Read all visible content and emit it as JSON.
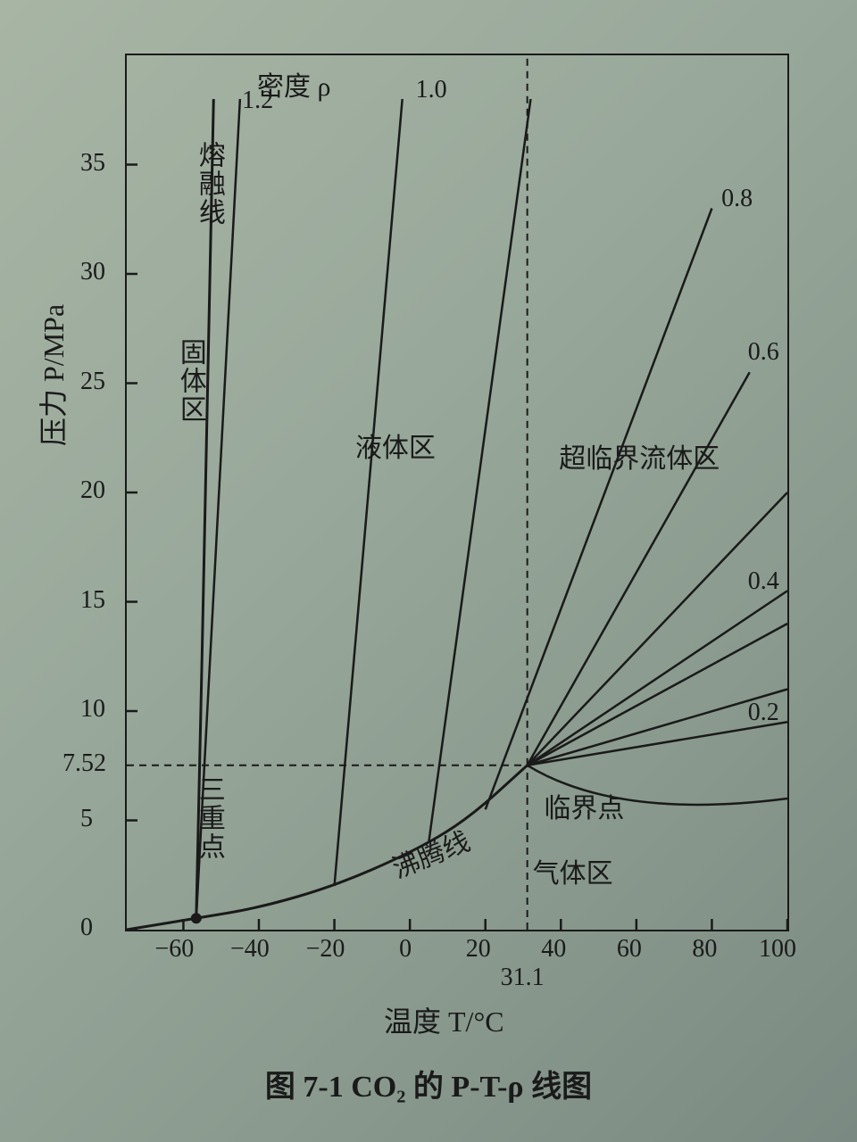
{
  "chart": {
    "type": "phase-diagram",
    "caption": "图 7-1  CO₂ 的 P-T-ρ 线图",
    "x_axis": {
      "label": "温度 T/°C",
      "min": -75,
      "max": 100,
      "ticks": [
        -60,
        -40,
        -20,
        0,
        20,
        40,
        60,
        80,
        100
      ],
      "extra_tick": 31.1
    },
    "y_axis": {
      "label": "压力 P/MPa",
      "min": 0,
      "max": 40,
      "ticks": [
        0,
        5,
        10,
        15,
        20,
        25,
        30,
        35
      ],
      "extra_tick": 7.52
    },
    "critical_point": {
      "T": 31.1,
      "P": 7.52
    },
    "triple_point": {
      "T": -56.6,
      "P": 0.52
    },
    "regions": {
      "solid": "固体区",
      "liquid": "液体区",
      "gas": "气体区",
      "supercritical": "超临界流体区"
    },
    "curve_labels": {
      "melting": "熔融线",
      "boiling": "沸腾线",
      "triple": "三重点",
      "critical": "临界点",
      "density": "密度 ρ"
    },
    "density_curves": [
      {
        "rho": "1.2",
        "path": [
          [
            -56.6,
            0.52
          ],
          [
            -45,
            38
          ]
        ]
      },
      {
        "rho": "1.0",
        "path": [
          [
            -20,
            2
          ],
          [
            -2,
            38
          ]
        ]
      },
      {
        "rho": "",
        "path": [
          [
            5,
            4
          ],
          [
            32,
            38
          ]
        ]
      },
      {
        "rho": "0.8",
        "path": [
          [
            20,
            5.5
          ],
          [
            80,
            33
          ]
        ]
      },
      {
        "rho": "",
        "path": [
          [
            31.1,
            7.52
          ],
          [
            90,
            25.5
          ]
        ]
      },
      {
        "rho": "0.6",
        "path": [
          [
            31.1,
            7.52
          ],
          [
            100,
            20
          ]
        ]
      },
      {
        "rho": "",
        "path": [
          [
            31.1,
            7.52
          ],
          [
            100,
            15.5
          ]
        ]
      },
      {
        "rho": "0.4",
        "path": [
          [
            31.1,
            7.52
          ],
          [
            100,
            14
          ]
        ]
      },
      {
        "rho": "",
        "path": [
          [
            31.1,
            7.52
          ],
          [
            100,
            11
          ]
        ]
      },
      {
        "rho": "0.2",
        "path": [
          [
            31.1,
            7.52
          ],
          [
            100,
            9.5
          ]
        ]
      }
    ],
    "melting_curve": [
      [
        -56.6,
        0.52
      ],
      [
        -55,
        13
      ],
      [
        -52,
        38
      ]
    ],
    "boiling_curve": [
      [
        -75,
        0
      ],
      [
        -56.6,
        0.52
      ],
      [
        -40,
        1.0
      ],
      [
        -20,
        2.0
      ],
      [
        0,
        3.5
      ],
      [
        15,
        5.0
      ],
      [
        31.1,
        7.52
      ]
    ],
    "gas_extension": [
      [
        31.1,
        7.52
      ],
      [
        60,
        5.5
      ],
      [
        100,
        6.0
      ]
    ],
    "colors": {
      "line": "#1a1a1a",
      "dash": "#1a1a1a",
      "bg": "#9ba89e"
    },
    "line_width": 2.5,
    "dash_pattern": "8,6"
  }
}
